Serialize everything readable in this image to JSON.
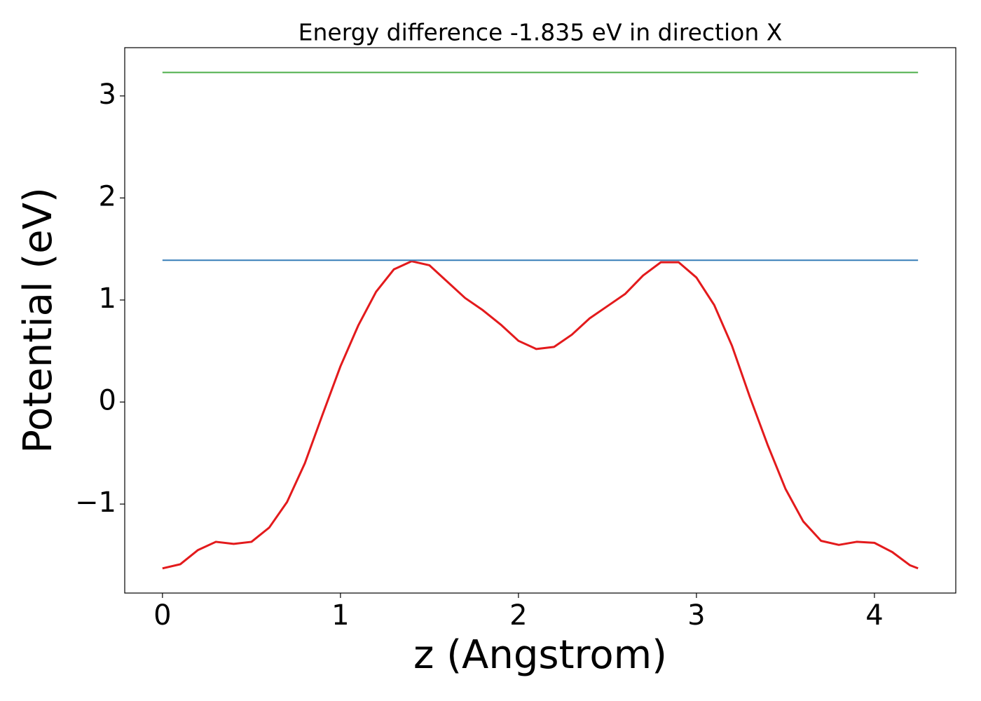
{
  "chart_data": {
    "type": "line",
    "title": "Energy difference -1.835 eV in direction X",
    "xlabel": "z (Angstrom)",
    "ylabel": "Potential (eV)",
    "xlim": [
      -0.212,
      4.457
    ],
    "ylim": [
      -1.872,
      3.473
    ],
    "xticks": [
      0,
      1,
      2,
      3,
      4
    ],
    "yticks": [
      {
        "value": -1,
        "label": "−1"
      },
      0,
      1,
      2,
      3
    ],
    "series": [
      {
        "color": "#e31a1c",
        "x": [
          0,
          0.1,
          0.2,
          0.3,
          0.4,
          0.5,
          0.6,
          0.7,
          0.8,
          0.9,
          1.0,
          1.1,
          1.2,
          1.3,
          1.4,
          1.5,
          1.6,
          1.7,
          1.8,
          1.9,
          2.0,
          2.1,
          2.2,
          2.3,
          2.4,
          2.5,
          2.6,
          2.7,
          2.8,
          2.9,
          3.0,
          3.1,
          3.2,
          3.3,
          3.4,
          3.5,
          3.6,
          3.7,
          3.8,
          3.9,
          4.0,
          4.1,
          4.2,
          4.245
        ],
        "values": [
          -1.63,
          -1.59,
          -1.45,
          -1.37,
          -1.39,
          -1.37,
          -1.23,
          -0.98,
          -0.6,
          -0.12,
          0.35,
          0.75,
          1.08,
          1.3,
          1.38,
          1.34,
          1.18,
          1.02,
          0.9,
          0.76,
          0.6,
          0.52,
          0.54,
          0.66,
          0.82,
          0.94,
          1.06,
          1.24,
          1.37,
          1.37,
          1.22,
          0.95,
          0.55,
          0.05,
          -0.42,
          -0.85,
          -1.17,
          -1.36,
          -1.4,
          -1.37,
          -1.38,
          -1.47,
          -1.6,
          -1.63
        ]
      },
      {
        "color": "#377eb8",
        "x": [
          0,
          4.245
        ],
        "values": [
          1.39,
          1.39
        ]
      },
      {
        "color": "#4daf4a",
        "x": [
          0,
          4.245
        ],
        "values": [
          3.23,
          3.23
        ]
      }
    ]
  }
}
